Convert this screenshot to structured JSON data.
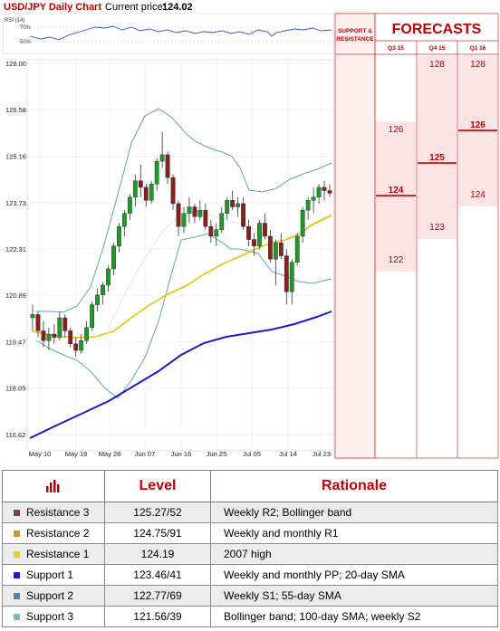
{
  "header": {
    "title": "USD/JPY Daily Chart",
    "price_label": "Current price:",
    "price_value": "124.02"
  },
  "chart_data": {
    "type": "candlestick",
    "y_ticks": [
      "128.00",
      "126.58",
      "125.16",
      "123.73",
      "122.31",
      "120.89",
      "119.47",
      "118.05",
      "116.62"
    ],
    "x_ticks": [
      "May 10",
      "May 19",
      "May 28",
      "Jun 07",
      "Jun 16",
      "Jun 25",
      "Jul 05",
      "Jul 14",
      "Jul 23"
    ],
    "ylim": [
      116.62,
      128.0
    ],
    "rsi": {
      "label": "RSI (14)",
      "levels": [
        "70%",
        "50%"
      ]
    },
    "levels": [
      {
        "name": "Resistance 3",
        "value": 125.27,
        "label": "125.27",
        "color": "#7b2335"
      },
      {
        "name": "Resistance 2",
        "value": 124.75,
        "label": "124.75",
        "color": "#e0a640"
      },
      {
        "name": "Resistance 1",
        "value": 124.19,
        "label": "124.19",
        "color": "#e6c800"
      },
      {
        "name": "Support 1",
        "value": 123.46,
        "label": "123.46",
        "color": "#1a1ac8"
      },
      {
        "name": "Support 2",
        "value": 122.77,
        "label": "122.77",
        "color": "#3a7ab0"
      },
      {
        "name": "Support 3",
        "value": 121.56,
        "label": "121.56",
        "color": "#a8d4d4"
      }
    ],
    "candles": [
      [
        120.2,
        120.6,
        119.8,
        120.3
      ],
      [
        120.3,
        120.4,
        119.6,
        119.8
      ],
      [
        119.8,
        120.1,
        119.3,
        119.5
      ],
      [
        119.5,
        119.9,
        119.2,
        119.7
      ],
      [
        119.7,
        120.0,
        119.4,
        119.6
      ],
      [
        119.6,
        120.4,
        119.5,
        120.2
      ],
      [
        120.2,
        120.3,
        119.6,
        119.8
      ],
      [
        119.8,
        119.9,
        119.3,
        119.4
      ],
      [
        119.4,
        119.6,
        119.0,
        119.2
      ],
      [
        119.2,
        119.7,
        119.1,
        119.5
      ],
      [
        119.5,
        120.1,
        119.4,
        119.9
      ],
      [
        119.9,
        120.7,
        119.8,
        120.6
      ],
      [
        120.6,
        121.1,
        120.4,
        120.9
      ],
      [
        120.9,
        121.3,
        120.6,
        121.2
      ],
      [
        121.2,
        121.8,
        121.0,
        121.7
      ],
      [
        121.7,
        122.5,
        121.5,
        122.4
      ],
      [
        122.4,
        123.1,
        122.2,
        123.0
      ],
      [
        123.0,
        123.5,
        122.7,
        123.4
      ],
      [
        123.4,
        124.0,
        123.2,
        123.9
      ],
      [
        123.9,
        124.6,
        123.6,
        124.4
      ],
      [
        124.4,
        124.9,
        123.9,
        124.2
      ],
      [
        124.2,
        124.3,
        123.6,
        123.8
      ],
      [
        123.8,
        124.4,
        123.7,
        124.3
      ],
      [
        124.3,
        125.1,
        124.1,
        125.0
      ],
      [
        125.0,
        125.9,
        124.8,
        125.2
      ],
      [
        125.2,
        125.3,
        124.3,
        124.5
      ],
      [
        124.5,
        124.6,
        123.5,
        123.7
      ],
      [
        123.7,
        123.8,
        122.7,
        123.0
      ],
      [
        123.0,
        123.6,
        122.8,
        123.4
      ],
      [
        123.4,
        123.9,
        123.1,
        123.6
      ],
      [
        123.6,
        123.7,
        123.1,
        123.3
      ],
      [
        123.3,
        123.8,
        123.2,
        123.5
      ],
      [
        123.5,
        123.7,
        122.9,
        123.0
      ],
      [
        123.0,
        123.2,
        122.5,
        122.7
      ],
      [
        122.7,
        123.1,
        122.4,
        122.9
      ],
      [
        122.9,
        123.6,
        122.8,
        123.4
      ],
      [
        123.4,
        123.9,
        123.2,
        123.8
      ],
      [
        123.8,
        124.1,
        123.5,
        123.6
      ],
      [
        123.6,
        123.9,
        123.3,
        123.7
      ],
      [
        123.7,
        123.9,
        122.9,
        123.0
      ],
      [
        123.0,
        123.2,
        122.4,
        122.6
      ],
      [
        122.6,
        122.8,
        122.1,
        122.4
      ],
      [
        122.4,
        123.2,
        122.3,
        123.1
      ],
      [
        123.1,
        123.4,
        122.6,
        122.7
      ],
      [
        122.7,
        122.9,
        121.9,
        122.0
      ],
      [
        122.0,
        122.6,
        121.2,
        122.5
      ],
      [
        122.5,
        122.8,
        122.0,
        122.1
      ],
      [
        122.1,
        122.3,
        120.6,
        121.0
      ],
      [
        121.0,
        122.0,
        120.6,
        121.9
      ],
      [
        121.9,
        122.8,
        121.8,
        122.7
      ],
      [
        122.7,
        123.6,
        122.5,
        123.5
      ],
      [
        123.5,
        123.9,
        123.2,
        123.8
      ],
      [
        123.8,
        124.2,
        123.4,
        123.9
      ],
      [
        123.9,
        124.3,
        123.7,
        124.2
      ],
      [
        124.2,
        124.4,
        123.8,
        124.1
      ],
      [
        124.1,
        124.3,
        123.9,
        124.02
      ]
    ]
  },
  "forecasts": {
    "title": "FORECASTS",
    "sr_label": "SUPPORT & RESISTANCE",
    "quarters": [
      {
        "name": "Q3 15",
        "high": "126",
        "mid": "124",
        "low": "122",
        "v_high": 126,
        "v_mid": 124,
        "v_low": 122
      },
      {
        "name": "Q4 15",
        "high": "128",
        "mid": "125",
        "low": "123",
        "v_high": 128,
        "v_mid": 125,
        "v_low": 123
      },
      {
        "name": "Q1 16",
        "high": "128",
        "mid": "126",
        "low": "124",
        "v_high": 128,
        "v_mid": 126,
        "v_low": 124
      }
    ]
  },
  "table": {
    "headers": {
      "level": "Level",
      "rationale": "Rationale"
    },
    "rows": [
      {
        "name": "Resistance 3",
        "level": "125.27/52",
        "rationale": "Weekly R2; Bollinger band",
        "color": "#8b3a48"
      },
      {
        "name": "Resistance 2",
        "level": "124.75/91",
        "rationale": "Weekly and monthly R1",
        "color": "#c89a2a"
      },
      {
        "name": "Resistance 1",
        "level": "124.19",
        "rationale": "2007 high",
        "color": "#f2d000"
      },
      {
        "name": "Support 1",
        "level": "123.46/41",
        "rationale": "Weekly and monthly PP; 20-day SMA",
        "color": "#1a1ad2"
      },
      {
        "name": "Support 2",
        "level": "122.77/69",
        "rationale": "Weekly S1; 55-day SMA",
        "color": "#4a86c0"
      },
      {
        "name": "Support 3",
        "level": "121.56/39",
        "rationale": "Bollinger band; 100-day SMA; weekly S2",
        "color": "#7fb6cc"
      }
    ]
  }
}
